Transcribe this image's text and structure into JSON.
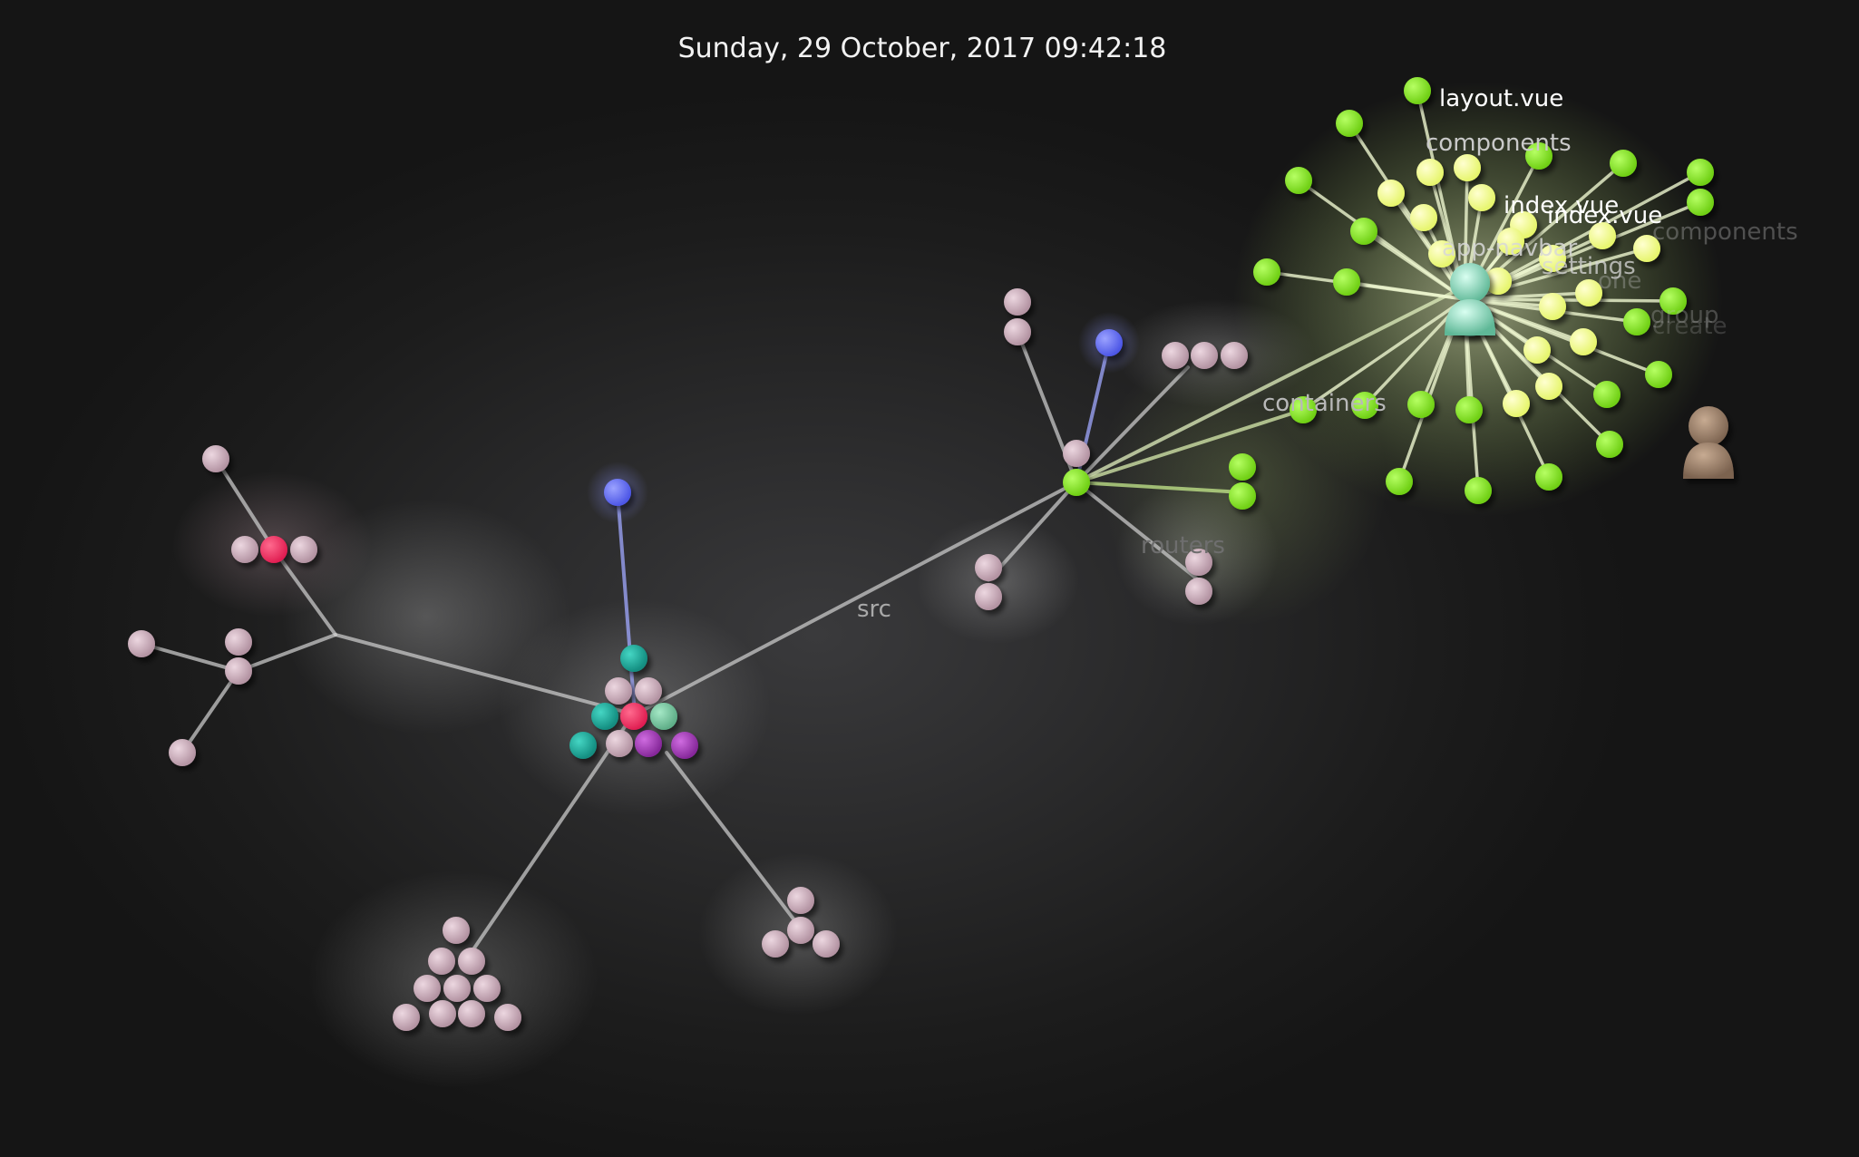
{
  "timestamp": "Sunday, 29 October, 2017 09:42:18",
  "colors": {
    "background": "#1c1c1c",
    "edge": "#c9c9c9",
    "file_pink": "#c9a9b6",
    "file_red": "#ff3b6b",
    "file_teal": "#1fb3a3",
    "file_mint": "#7ccfa5",
    "file_purple": "#a641b6",
    "file_blue": "#6f78ff",
    "file_green": "#8cf22a",
    "file_yellow": "#f4ff8a",
    "user_mint": "#7fe1c0",
    "user_brown": "#9a7e66"
  },
  "labels": {
    "src": "src",
    "routers": "routers",
    "containers": "containers",
    "components": "components",
    "layout_vue": "layout.vue",
    "index_vue_1": "index.vue",
    "index_vue_2": "index.vue",
    "app_navbar": "app-navbar",
    "settings": "settings",
    "faded_components": "components",
    "faded_one": "one",
    "faded_group": "group",
    "faded_create": "create"
  },
  "icons": {
    "user_1": "user-avatar-icon",
    "user_2": "user-avatar-icon"
  }
}
